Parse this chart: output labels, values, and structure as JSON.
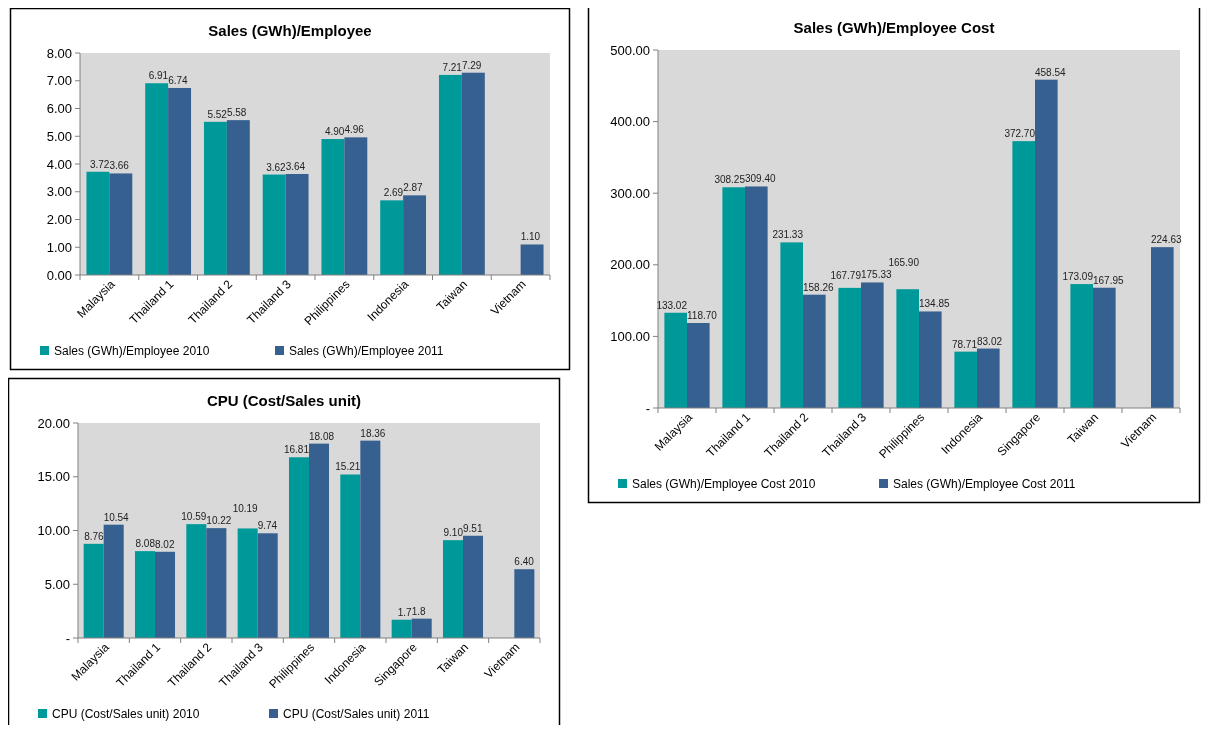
{
  "chart_data": [
    {
      "type": "bar",
      "title": "Sales (GWh)/Employee",
      "categories": [
        "Malaysia",
        "Thailand 1",
        "Thailand 2",
        "Thailand 3",
        "Philippines",
        "Indonesia",
        "Taiwan",
        "Vietnam"
      ],
      "series": [
        {
          "name": "Sales (GWh)/Employee  2010",
          "color": "#009999",
          "values": [
            3.72,
            6.91,
            5.52,
            3.62,
            4.9,
            2.69,
            7.21,
            null
          ],
          "value_labels": [
            "3.72",
            "6.91",
            "5.52",
            "3.62",
            "4.90",
            "2.69",
            "7.21",
            null
          ]
        },
        {
          "name": "Sales (GWh)/Employee  2011",
          "color": "#35608f",
          "values": [
            3.66,
            6.74,
            5.58,
            3.64,
            4.96,
            2.87,
            7.29,
            1.1
          ],
          "value_labels": [
            "3.66",
            "6.74",
            "5.58",
            "3.64",
            "4.96",
            "2.87",
            "7.29",
            "1.10"
          ]
        }
      ],
      "ylim": [
        0,
        8
      ],
      "yticks": [
        {
          "value": 0,
          "label": "0.00"
        },
        {
          "value": 1,
          "label": "1.00"
        },
        {
          "value": 2,
          "label": "2.00"
        },
        {
          "value": 3,
          "label": "3.00"
        },
        {
          "value": 4,
          "label": "4.00"
        },
        {
          "value": 5,
          "label": "5.00"
        },
        {
          "value": 6,
          "label": "6.00"
        },
        {
          "value": 7,
          "label": "7.00"
        },
        {
          "value": 8,
          "label": "8.00"
        }
      ],
      "grid": false,
      "legend": "bottom"
    },
    {
      "type": "bar",
      "title": "Sales (GWh)/Employee Cost",
      "categories": [
        "Malaysia",
        "Thailand 1",
        "Thailand 2",
        "Thailand 3",
        "Philippines",
        "Indonesia",
        "Singapore",
        "Taiwan",
        "Vietnam"
      ],
      "series": [
        {
          "name": "Sales (GWh)/Employee Cost  2010",
          "color": "#009999",
          "values": [
            133.02,
            308.25,
            231.33,
            167.79,
            165.9,
            78.71,
            372.7,
            173.09,
            null
          ],
          "value_labels": [
            "133.02",
            "308.25",
            "231.33",
            "167.79",
            "165.90",
            "78.71",
            "372.70",
            "173.09",
            null
          ]
        },
        {
          "name": "Sales (GWh)/Employee Cost  2011",
          "color": "#35608f",
          "values": [
            118.7,
            309.4,
            158.26,
            175.33,
            134.85,
            83.02,
            458.54,
            167.95,
            224.63
          ],
          "value_labels": [
            "118.70",
            "309.40",
            "158.26",
            "175.33",
            "134.85",
            "83.02",
            "458.54",
            "167.95",
            "224.63"
          ]
        }
      ],
      "ylim": [
        0,
        500
      ],
      "yticks": [
        {
          "value": 0,
          "label": "-"
        },
        {
          "value": 100,
          "label": "100.00"
        },
        {
          "value": 200,
          "label": "200.00"
        },
        {
          "value": 300,
          "label": "300.00"
        },
        {
          "value": 400,
          "label": "400.00"
        },
        {
          "value": 500,
          "label": "500.00"
        }
      ],
      "grid": false,
      "legend": "bottom"
    },
    {
      "type": "bar",
      "title": "CPU (Cost/Sales unit)",
      "categories": [
        "Malaysia",
        "Thailand 1",
        "Thailand 2",
        "Thailand 3",
        "Philippines",
        "Indonesia",
        "Singapore",
        "Taiwan",
        "Vietnam"
      ],
      "series": [
        {
          "name": "CPU (Cost/Sales unit)  2010",
          "color": "#009999",
          "values": [
            8.76,
            8.08,
            10.59,
            10.19,
            16.81,
            15.21,
            1.7,
            9.1,
            null
          ],
          "value_labels": [
            "8.76",
            "8.08",
            "10.59",
            "10.19",
            "16.81",
            "15.21",
            "1.7",
            "9.10",
            null
          ]
        },
        {
          "name": "CPU (Cost/Sales unit)  2011",
          "color": "#35608f",
          "values": [
            10.54,
            8.02,
            10.22,
            9.74,
            18.08,
            18.36,
            1.8,
            9.51,
            6.4
          ],
          "value_labels": [
            "10.54",
            "8.02",
            "10.22",
            "9.74",
            "18.08",
            "18.36",
            "1.8",
            "9.51",
            "6.40"
          ]
        }
      ],
      "ylim": [
        0,
        20
      ],
      "yticks": [
        {
          "value": 0,
          "label": "-"
        },
        {
          "value": 5,
          "label": "5.00"
        },
        {
          "value": 10,
          "label": "10.00"
        },
        {
          "value": 15,
          "label": "15.00"
        },
        {
          "value": 20,
          "label": "20.00"
        }
      ],
      "grid": false,
      "legend": "bottom"
    }
  ]
}
